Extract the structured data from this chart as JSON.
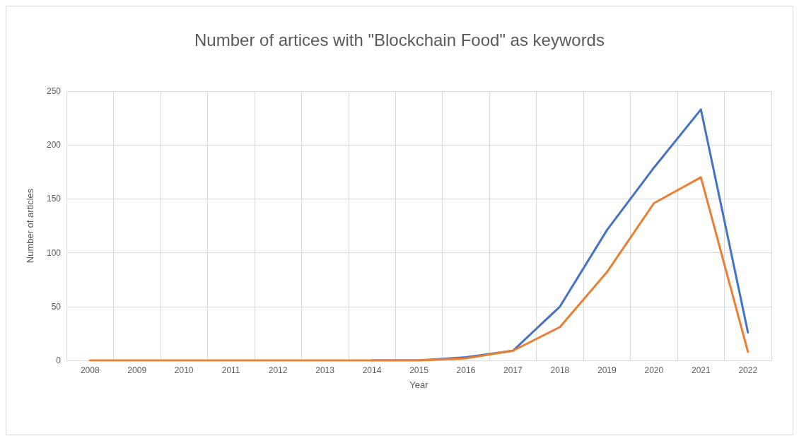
{
  "chart_data": {
    "type": "line",
    "title": "Number of artices with \"Blockchain Food\" as keywords",
    "xlabel": "Year",
    "ylabel": "Number of articles",
    "categories": [
      "2008",
      "2009",
      "2010",
      "2011",
      "2012",
      "2013",
      "2014",
      "2015",
      "2016",
      "2017",
      "2018",
      "2019",
      "2020",
      "2021",
      "2022"
    ],
    "series": [
      {
        "color": "#4472c4",
        "values": [
          null,
          null,
          null,
          null,
          null,
          null,
          0,
          0,
          3,
          9,
          50,
          121,
          179,
          233,
          26
        ]
      },
      {
        "color": "#ed7d31",
        "values": [
          0,
          0,
          0,
          0,
          0,
          0,
          0,
          0,
          2,
          9,
          31,
          82,
          146,
          170,
          8
        ]
      }
    ],
    "ylim": [
      0,
      250
    ],
    "yticks": [
      0,
      50,
      100,
      150,
      200,
      250
    ],
    "grid": true,
    "marker": "none",
    "line_style": "solid"
  }
}
